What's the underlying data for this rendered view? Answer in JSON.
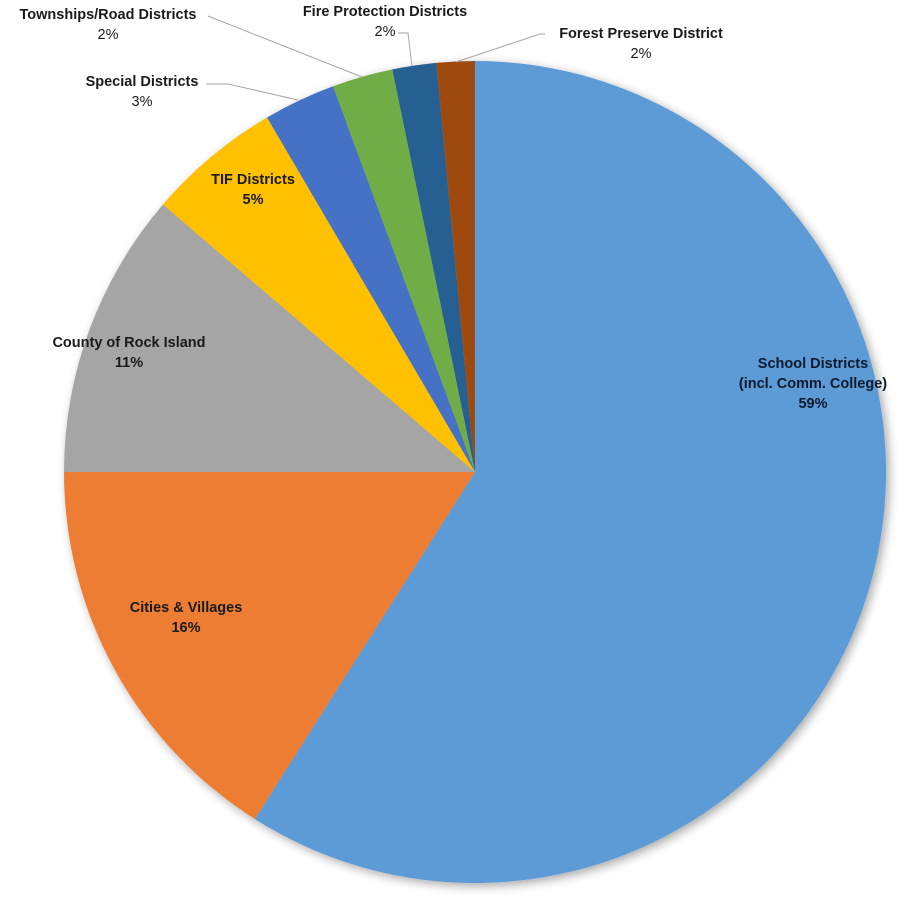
{
  "chart_data": {
    "type": "pie",
    "title": "",
    "start_angle_deg": 0,
    "direction": "clockwise",
    "slices": [
      {
        "label": "School Districts (incl. Comm. College)",
        "label_lines": [
          "School Districts",
          "(incl. Comm. College)"
        ],
        "value": 59,
        "display": "59%",
        "color": "#5B9BD5"
      },
      {
        "label": "Cities & Villages",
        "label_lines": [
          "Cities & Villages"
        ],
        "value": 16,
        "display": "16%",
        "color": "#ED7D31"
      },
      {
        "label": "County of Rock Island",
        "label_lines": [
          "County of Rock Island"
        ],
        "value": 11,
        "display": "11%",
        "color": "#A5A5A5"
      },
      {
        "label": "TIF Districts",
        "label_lines": [
          "TIF Districts"
        ],
        "value": 5,
        "display": "5%",
        "color": "#FFC000"
      },
      {
        "label": "Special Districts",
        "label_lines": [
          "Special Districts"
        ],
        "value": 3,
        "display": "3%",
        "color": "#4472C4"
      },
      {
        "label": "Townships/Road Districts",
        "label_lines": [
          "Townships/Road Districts"
        ],
        "value": 2,
        "display": "2%",
        "color": "#70AD47"
      },
      {
        "label": "Fire Protection Districts",
        "label_lines": [
          "Fire Protection Districts"
        ],
        "value": 2,
        "display": "2%",
        "color": "#255E91"
      },
      {
        "label": "Forest Preserve District",
        "label_lines": [
          "Forest Preserve District"
        ],
        "value": 2,
        "display": "2%",
        "color": "#9E480E"
      }
    ],
    "render_angles_deg": [
      212.4,
      57.6,
      40.6,
      19.0,
      10.2,
      8.6,
      6.2,
      5.4
    ],
    "legend": "none (data labels on/near slices)"
  },
  "labels": {
    "school": {
      "line1": "School Districts",
      "line2": "(incl. Comm. College)",
      "pct": "59%"
    },
    "cities": {
      "line1": "Cities & Villages",
      "pct": "16%"
    },
    "county": {
      "line1": "County of Rock Island",
      "pct": "11%"
    },
    "tif": {
      "line1": "TIF Districts",
      "pct": "5%"
    },
    "special": {
      "line1": "Special Districts",
      "pct": "3%"
    },
    "townships": {
      "line1": "Townships/Road Districts",
      "pct": "2%"
    },
    "fire": {
      "line1": "Fire Protection Districts",
      "pct": "2%"
    },
    "forest": {
      "line1": "Forest Preserve District",
      "pct": "2%"
    }
  }
}
